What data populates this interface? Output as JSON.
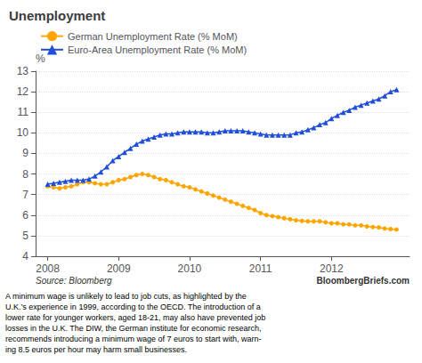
{
  "chart_data": {
    "type": "line",
    "title": "Unemployment",
    "ylabel": "%",
    "x": [
      2008.0,
      2008.083,
      2008.167,
      2008.25,
      2008.333,
      2008.417,
      2008.5,
      2008.583,
      2008.667,
      2008.75,
      2008.833,
      2008.917,
      2009.0,
      2009.083,
      2009.167,
      2009.25,
      2009.333,
      2009.417,
      2009.5,
      2009.583,
      2009.667,
      2009.75,
      2009.833,
      2009.917,
      2010.0,
      2010.083,
      2010.167,
      2010.25,
      2010.333,
      2010.417,
      2010.5,
      2010.583,
      2010.667,
      2010.75,
      2010.833,
      2010.917,
      2011.0,
      2011.083,
      2011.167,
      2011.25,
      2011.333,
      2011.417,
      2011.5,
      2011.583,
      2011.667,
      2011.75,
      2011.833,
      2011.917,
      2012.0,
      2012.083,
      2012.167,
      2012.25,
      2012.333,
      2012.417,
      2012.5,
      2012.583,
      2012.667,
      2012.75,
      2012.833,
      2012.917
    ],
    "series": [
      {
        "name": "German Unemployment Rate (% MoM)",
        "color": "#FFA500",
        "marker": "circle",
        "values": [
          7.4,
          7.35,
          7.3,
          7.35,
          7.4,
          7.5,
          7.6,
          7.6,
          7.55,
          7.5,
          7.5,
          7.6,
          7.7,
          7.75,
          7.85,
          7.95,
          8.0,
          7.95,
          7.85,
          7.75,
          7.7,
          7.6,
          7.5,
          7.4,
          7.35,
          7.25,
          7.15,
          7.05,
          6.95,
          6.85,
          6.75,
          6.65,
          6.55,
          6.45,
          6.35,
          6.25,
          6.1,
          6.0,
          5.95,
          5.9,
          5.85,
          5.8,
          5.75,
          5.72,
          5.7,
          5.7,
          5.7,
          5.65,
          5.6,
          5.6,
          5.55,
          5.55,
          5.5,
          5.5,
          5.45,
          5.42,
          5.4,
          5.35,
          5.32,
          5.3
        ]
      },
      {
        "name": "Euro-Area Unemployment Rate (% MoM)",
        "color": "#1F4FD8",
        "marker": "triangle",
        "values": [
          7.5,
          7.55,
          7.6,
          7.65,
          7.7,
          7.7,
          7.7,
          7.75,
          7.9,
          8.1,
          8.35,
          8.65,
          8.85,
          9.05,
          9.25,
          9.45,
          9.6,
          9.7,
          9.8,
          9.9,
          9.95,
          9.95,
          10.0,
          10.05,
          10.05,
          10.05,
          10.05,
          10.0,
          10.0,
          10.05,
          10.1,
          10.1,
          10.1,
          10.1,
          10.05,
          10.0,
          9.95,
          9.9,
          9.9,
          9.9,
          9.9,
          9.9,
          10.0,
          10.05,
          10.15,
          10.25,
          10.4,
          10.5,
          10.7,
          10.85,
          11.0,
          11.1,
          11.25,
          11.35,
          11.45,
          11.55,
          11.65,
          11.8,
          12.0,
          12.1
        ]
      }
    ],
    "xlim": [
      2007.83,
      2013.1
    ],
    "xticks": [
      2008,
      2009,
      2010,
      2011,
      2012
    ],
    "ylim": [
      4,
      13
    ],
    "yticks": [
      4,
      5,
      6,
      7,
      8,
      9,
      10,
      11,
      12,
      13
    ],
    "grid": true,
    "legend": "top",
    "annotations": [
      "Source: Bloomberg",
      "BloombergBriefs.com",
      "A minimum wage is unlikely to lead to job cuts, as highlighted by the\nU.K.’s experience in 1999, according to the OECD. The introduction of a\nlower rate for younger workers, aged 18-21, may also have prevented job\nlosses in the U.K. The DIW, the German institute for economic research,\nrecommends introducing a minimum wage of 7 euros to start with, warn-\ning 8.5 euros per hour may harm small businesses."
    ]
  }
}
